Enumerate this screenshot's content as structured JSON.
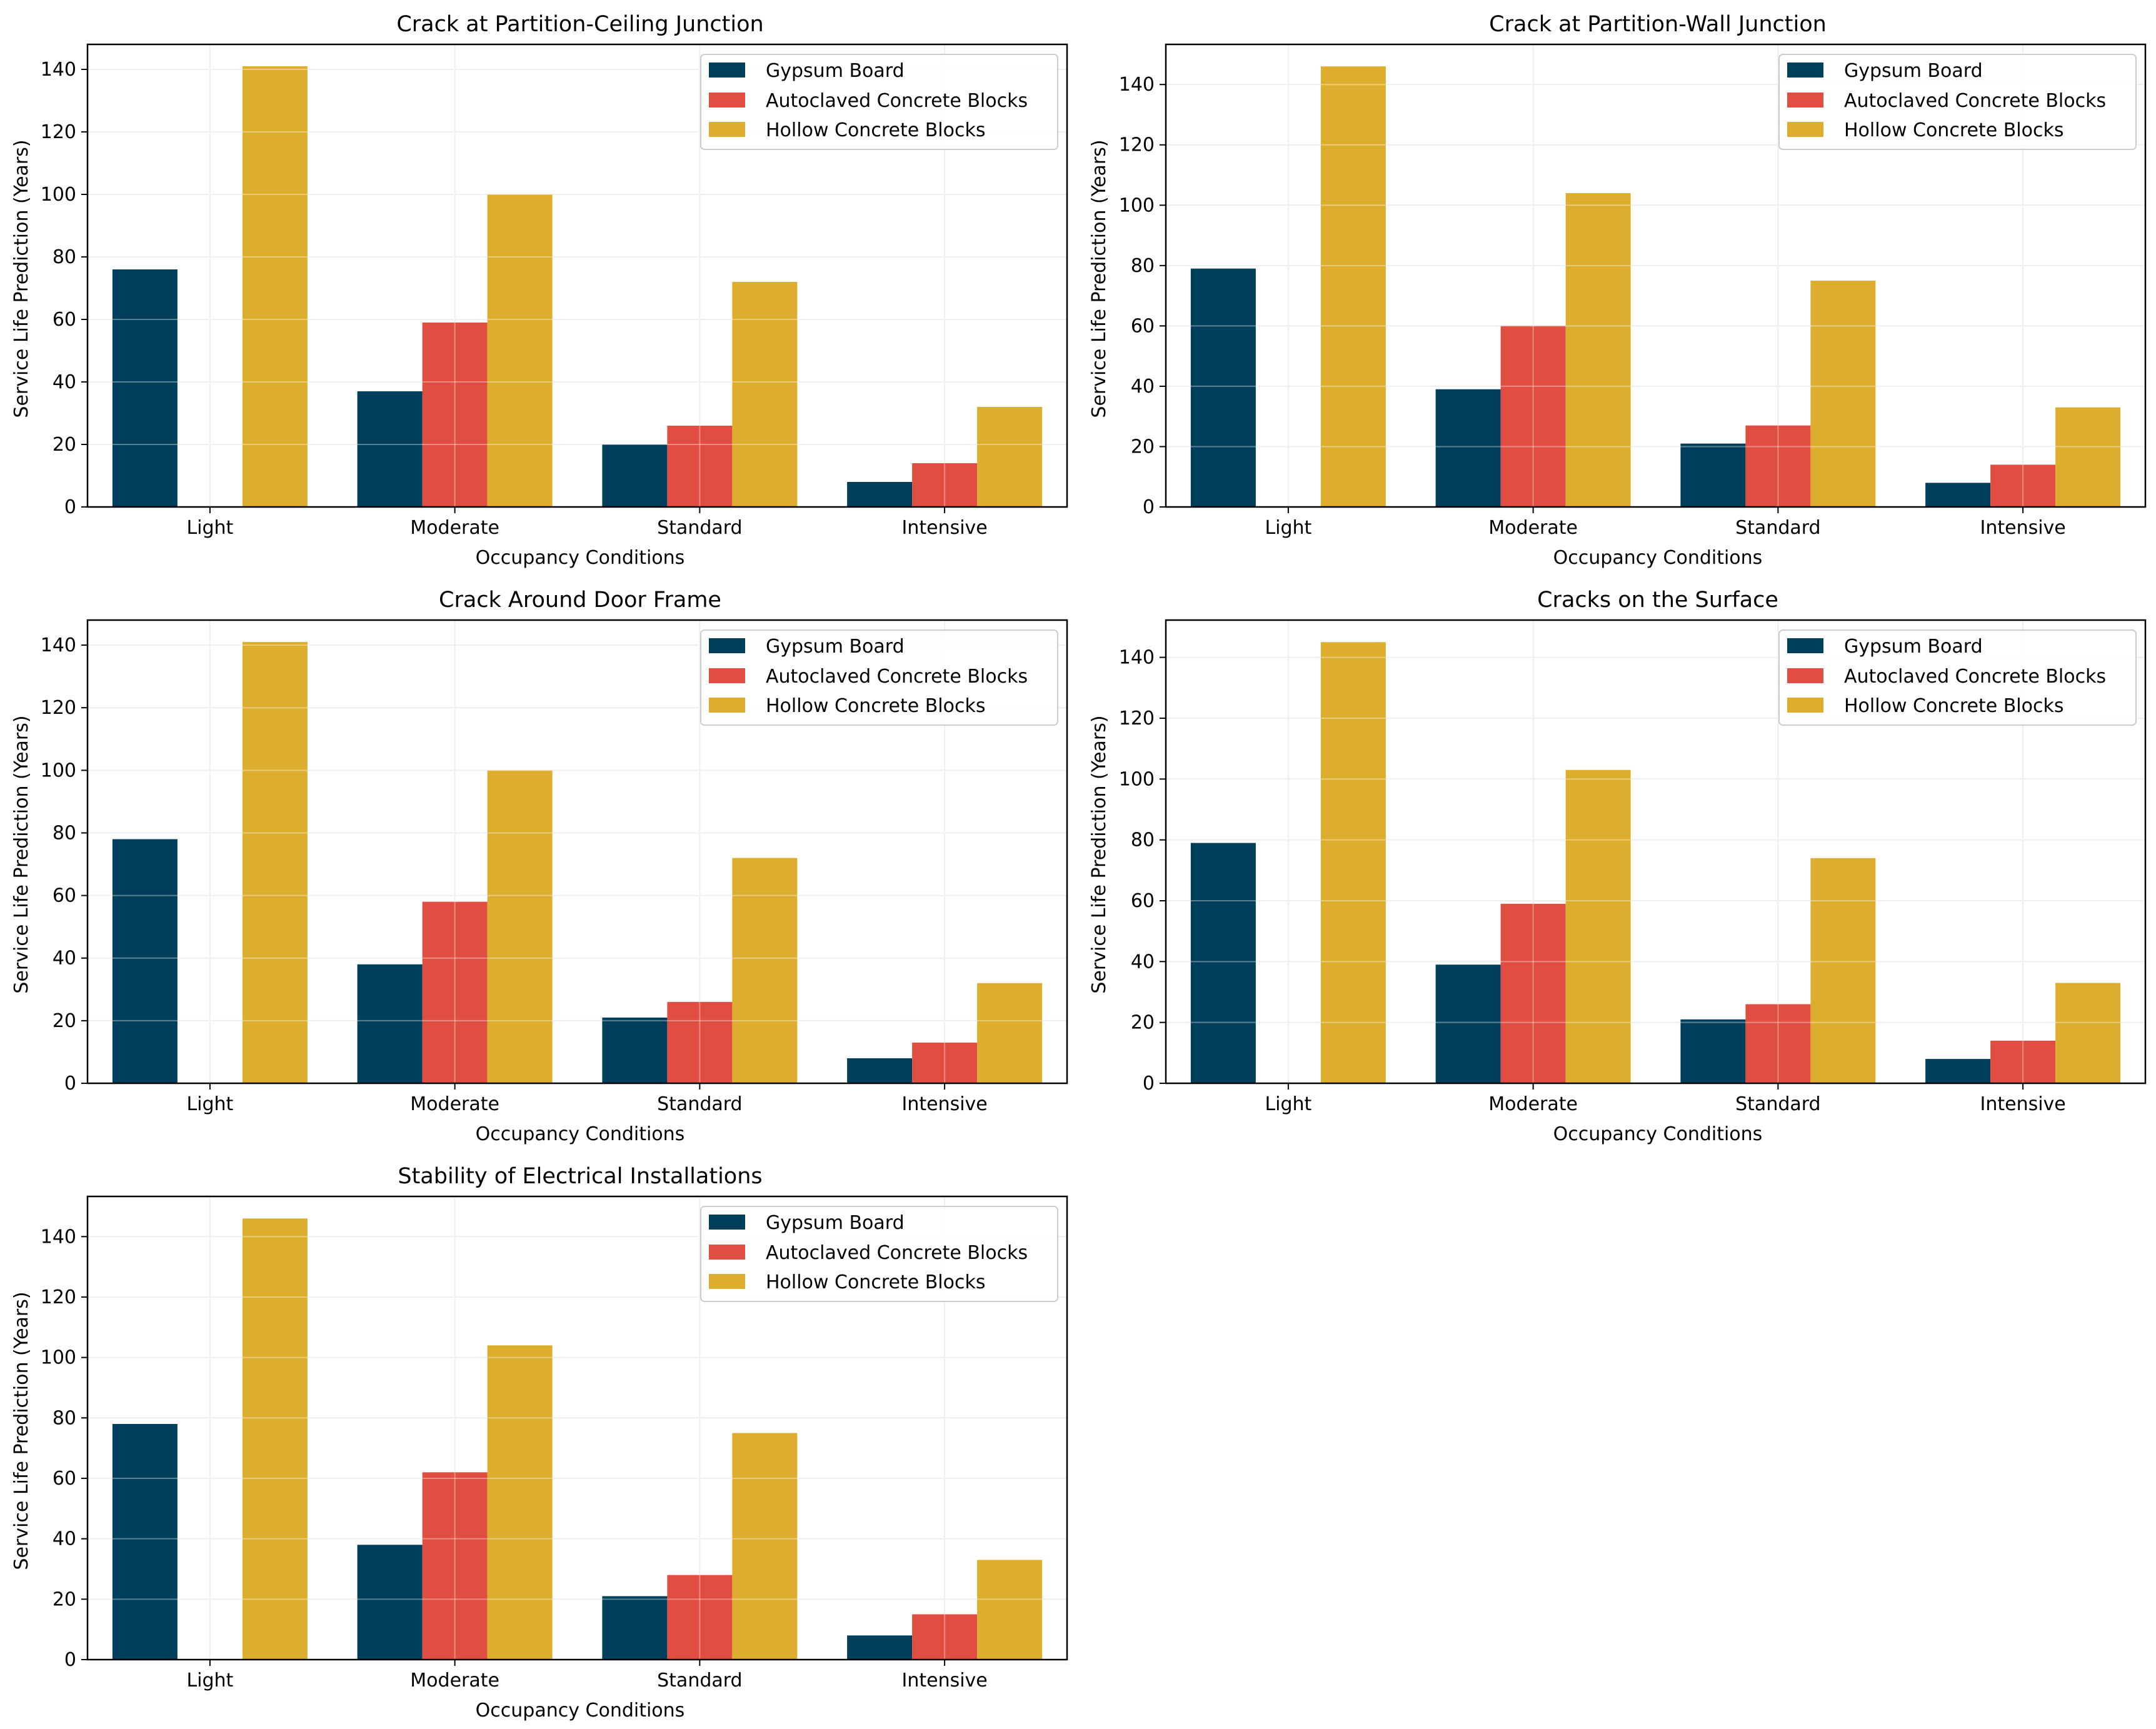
{
  "colors": {
    "Gypsum Board": "#003f5c",
    "Autoclaved Concrete Blocks": "#e04e42",
    "Hollow Concrete Blocks": "#ddae2e",
    "grid": "#e6e6e6",
    "axis": "#000000"
  },
  "chart_data": [
    {
      "type": "bar",
      "title": "Crack at Partition-Ceiling Junction",
      "xlabel": "Occupancy Conditions",
      "ylabel": "Service Life Prediction (Years)",
      "categories": [
        "Light",
        "Moderate",
        "Standard",
        "Intensive"
      ],
      "series": [
        {
          "name": "Gypsum Board",
          "values": [
            76,
            37,
            20,
            8
          ]
        },
        {
          "name": "Autoclaved Concrete Blocks",
          "values": [
            0,
            59,
            26,
            14
          ]
        },
        {
          "name": "Hollow Concrete Blocks",
          "values": [
            141,
            100,
            72,
            32
          ]
        }
      ],
      "ylim": [
        0,
        148
      ],
      "yticks": [
        0,
        20,
        40,
        60,
        80,
        100,
        120,
        140
      ],
      "grid": true,
      "legend": "top-right"
    },
    {
      "type": "bar",
      "title": "Crack at Partition-Wall Junction",
      "xlabel": "Occupancy Conditions",
      "ylabel": "Service Life Prediction (Years)",
      "categories": [
        "Light",
        "Moderate",
        "Standard",
        "Intensive"
      ],
      "series": [
        {
          "name": "Gypsum Board",
          "values": [
            79,
            39,
            21,
            8
          ]
        },
        {
          "name": "Autoclaved Concrete Blocks",
          "values": [
            0,
            60,
            27,
            14
          ]
        },
        {
          "name": "Hollow Concrete Blocks",
          "values": [
            146,
            104,
            75,
            33
          ]
        }
      ],
      "ylim": [
        0,
        153.3
      ],
      "yticks": [
        0,
        20,
        40,
        60,
        80,
        100,
        120,
        140
      ],
      "grid": true,
      "legend": "top-right"
    },
    {
      "type": "bar",
      "title": "Crack Around Door Frame",
      "xlabel": "Occupancy Conditions",
      "ylabel": "Service Life Prediction (Years)",
      "categories": [
        "Light",
        "Moderate",
        "Standard",
        "Intensive"
      ],
      "series": [
        {
          "name": "Gypsum Board",
          "values": [
            78,
            38,
            21,
            8
          ]
        },
        {
          "name": "Autoclaved Concrete Blocks",
          "values": [
            0,
            58,
            26,
            13
          ]
        },
        {
          "name": "Hollow Concrete Blocks",
          "values": [
            141,
            100,
            72,
            32
          ]
        }
      ],
      "ylim": [
        0,
        148
      ],
      "yticks": [
        0,
        20,
        40,
        60,
        80,
        100,
        120,
        140
      ],
      "grid": true,
      "legend": "top-right"
    },
    {
      "type": "bar",
      "title": "Cracks on the Surface",
      "xlabel": "Occupancy Conditions",
      "ylabel": "Service Life Prediction (Years)",
      "categories": [
        "Light",
        "Moderate",
        "Standard",
        "Intensive"
      ],
      "series": [
        {
          "name": "Gypsum Board",
          "values": [
            79,
            39,
            21,
            8
          ]
        },
        {
          "name": "Autoclaved Concrete Blocks",
          "values": [
            0,
            59,
            26,
            14
          ]
        },
        {
          "name": "Hollow Concrete Blocks",
          "values": [
            145,
            103,
            74,
            33
          ]
        }
      ],
      "ylim": [
        0,
        152.25
      ],
      "yticks": [
        0,
        20,
        40,
        60,
        80,
        100,
        120,
        140
      ],
      "grid": true,
      "legend": "top-right"
    },
    {
      "type": "bar",
      "title": "Stability of Electrical Installations",
      "xlabel": "Occupancy Conditions",
      "ylabel": "Service Life Prediction (Years)",
      "categories": [
        "Light",
        "Moderate",
        "Standard",
        "Intensive"
      ],
      "series": [
        {
          "name": "Gypsum Board",
          "values": [
            78,
            38,
            21,
            8
          ]
        },
        {
          "name": "Autoclaved Concrete Blocks",
          "values": [
            0,
            62,
            28,
            15
          ]
        },
        {
          "name": "Hollow Concrete Blocks",
          "values": [
            146,
            104,
            75,
            33
          ]
        }
      ],
      "ylim": [
        0,
        153.3
      ],
      "yticks": [
        0,
        20,
        40,
        60,
        80,
        100,
        120,
        140
      ],
      "grid": true,
      "legend": "top-right"
    }
  ]
}
